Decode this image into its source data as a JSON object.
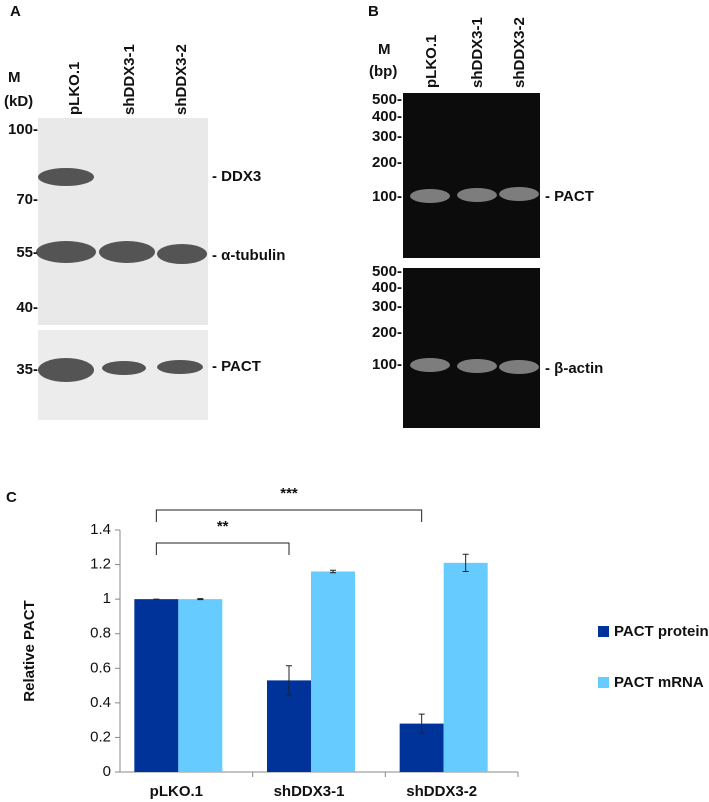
{
  "panel_a": {
    "label": "A",
    "marker_title": "M",
    "marker_unit": "(kD)",
    "lanes": [
      "pLKO.1",
      "shDDX3-1",
      "shDDX3-2"
    ],
    "markers": [
      "100-",
      "70-",
      "55-",
      "40-",
      "35-"
    ],
    "bands": [
      "- DDX3",
      "- α-tubulin",
      "- PACT"
    ]
  },
  "panel_b": {
    "label": "B",
    "marker_title": "M",
    "marker_unit": "(bp)",
    "lanes": [
      "pLKO.1",
      "shDDX3-1",
      "shDDX3-2"
    ],
    "markers_top": [
      "500-",
      "400-",
      "300-",
      "200-",
      "100-"
    ],
    "markers_bottom": [
      "500-",
      "400-",
      "300-",
      "200-",
      "100-"
    ],
    "bands": [
      "- PACT",
      "- β-actin"
    ]
  },
  "chart_data": {
    "type": "bar",
    "panel_label": "C",
    "ylabel": "Relative PACT",
    "categories": [
      "pLKO.1",
      "shDDX3-1",
      "shDDX3-2"
    ],
    "series": [
      {
        "name": "PACT protein",
        "color": "#003399",
        "values": [
          1,
          0.53,
          0.28
        ],
        "errors": [
          0,
          0.085,
          0.055
        ]
      },
      {
        "name": "PACT mRNA",
        "color": "#66ccff",
        "values": [
          1,
          1.16,
          1.21
        ],
        "errors": [
          0.003,
          0.007,
          0.05
        ]
      }
    ],
    "ylim": [
      0,
      1.4
    ],
    "yticks": [
      0,
      0.2,
      0.4,
      0.6,
      0.8,
      1,
      1.2,
      1.4
    ],
    "annotations": [
      "**",
      "***"
    ]
  }
}
